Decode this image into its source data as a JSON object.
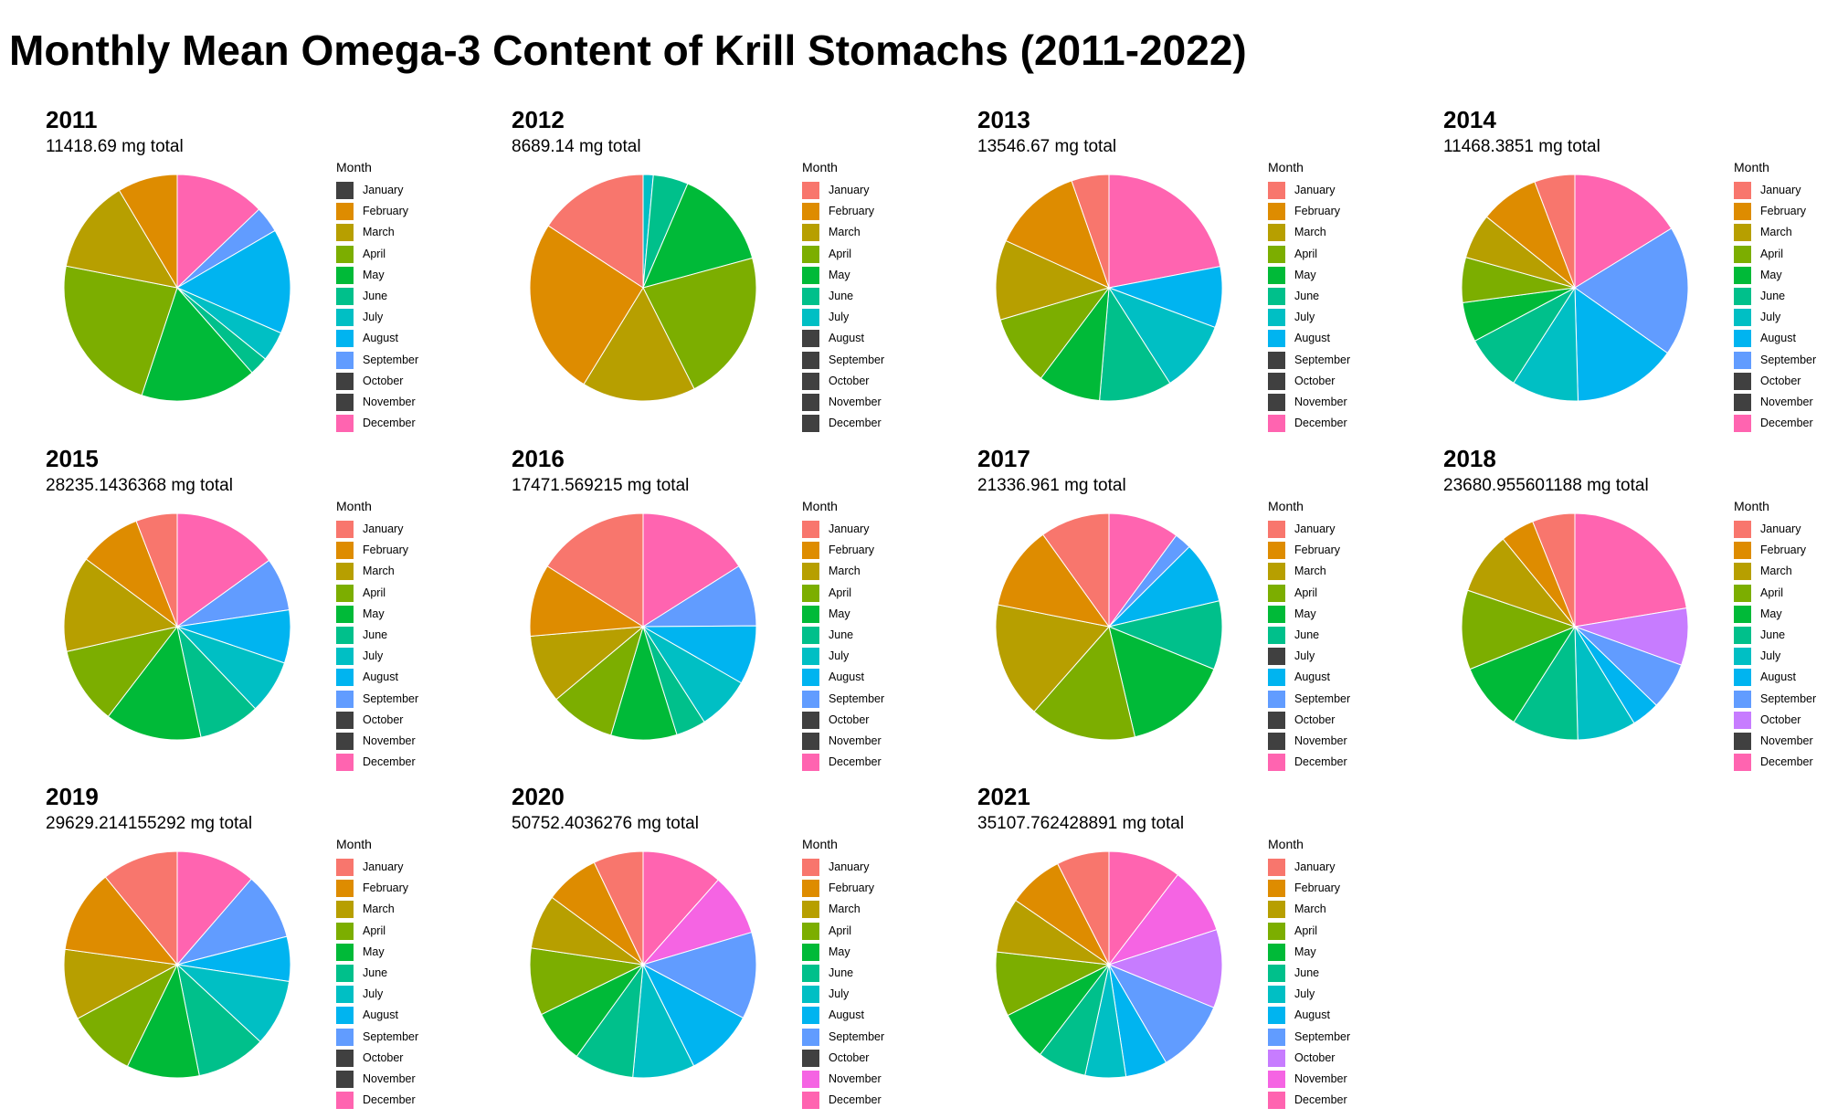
{
  "title": "Monthly Mean Omega-3 Content of Krill Stomachs (2011-2022)",
  "legend_title": "Month",
  "months": [
    "January",
    "February",
    "March",
    "April",
    "May",
    "June",
    "July",
    "August",
    "September",
    "October",
    "November",
    "December"
  ],
  "month_colors": [
    "#F8766D",
    "#DE8C00",
    "#B79F00",
    "#7CAE00",
    "#00BA38",
    "#00C08B",
    "#00BFC4",
    "#00B4F0",
    "#619CFF",
    "#C77CFF",
    "#F564E3",
    "#FF64B0"
  ],
  "absent_color": "#404040",
  "chart_data": [
    {
      "type": "pie",
      "title": "2011",
      "subtitle": "11418.69 mg total",
      "values": [
        0,
        0.08,
        0.125,
        0.215,
        0.155,
        0.025,
        0.04,
        0.14,
        0.035,
        0,
        0,
        0.12
      ]
    },
    {
      "type": "pie",
      "title": "2012",
      "subtitle": "8689.14 mg total",
      "values": [
        0.142,
        0.229,
        0.146,
        0.196,
        0.129,
        0.045,
        0.013,
        0,
        0,
        0,
        0,
        0
      ]
    },
    {
      "type": "pie",
      "title": "2013",
      "subtitle": "13546.67 mg total",
      "values": [
        0.048,
        0.115,
        0.102,
        0.091,
        0.08,
        0.093,
        0.092,
        0.078,
        0,
        0,
        0,
        0.197
      ]
    },
    {
      "type": "pie",
      "title": "2014",
      "subtitle": "11468.3851 mg total",
      "values": [
        0.052,
        0.076,
        0.058,
        0.058,
        0.051,
        0.073,
        0.086,
        0.133,
        0.167,
        0,
        0,
        0.146
      ]
    },
    {
      "type": "pie",
      "title": "2015",
      "subtitle": "28235.1436368 mg total",
      "values": [
        0.056,
        0.085,
        0.13,
        0.105,
        0.131,
        0.083,
        0.073,
        0.072,
        0.072,
        0,
        0,
        0.143
      ]
    },
    {
      "type": "pie",
      "title": "2016",
      "subtitle": "17471.569215 mg total",
      "values": [
        0.143,
        0.092,
        0.087,
        0.083,
        0.084,
        0.038,
        0.068,
        0.075,
        0.079,
        0,
        0,
        0.143
      ]
    },
    {
      "type": "pie",
      "title": "2017",
      "subtitle": "21336.961 mg total",
      "values": [
        0.09,
        0.109,
        0.151,
        0.138,
        0.138,
        0.089,
        0,
        0.08,
        0.022,
        0,
        0,
        0.092
      ]
    },
    {
      "type": "pie",
      "title": "2018",
      "subtitle": "23680.955601188 mg total",
      "values": [
        0.059,
        0.047,
        0.086,
        0.11,
        0.095,
        0.092,
        0.081,
        0.039,
        0.065,
        0.079,
        0,
        0.217
      ]
    },
    {
      "type": "pie",
      "title": "2019",
      "subtitle": "29629.214155292 mg total",
      "values": [
        0.101,
        0.11,
        0.093,
        0.091,
        0.096,
        0.092,
        0.088,
        0.059,
        0.089,
        0,
        0,
        0.105
      ]
    },
    {
      "type": "pie",
      "title": "2020",
      "subtitle": "50752.4036276 mg total",
      "values": [
        0.066,
        0.072,
        0.072,
        0.089,
        0.072,
        0.079,
        0.082,
        0.091,
        0.115,
        0,
        0.082,
        0.107
      ]
    },
    {
      "type": "pie",
      "title": "2021",
      "subtitle": "35107.762428891 mg total",
      "values": [
        0.075,
        0.079,
        0.078,
        0.092,
        0.072,
        0.07,
        0.058,
        0.06,
        0.104,
        0.112,
        0.096,
        0.104
      ]
    }
  ]
}
